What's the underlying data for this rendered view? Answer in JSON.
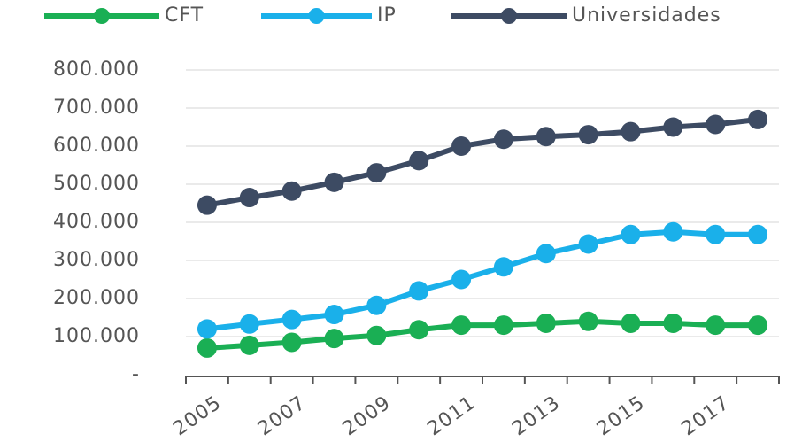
{
  "chart_data": {
    "type": "line",
    "categories": [
      "2005",
      null,
      "2007",
      null,
      "2009",
      null,
      "2011",
      null,
      "2013",
      null,
      "2015",
      null,
      "2017",
      null
    ],
    "series": [
      {
        "name": "CFT",
        "color": "#1aaf54",
        "values": [
          70000,
          77000,
          85000,
          95000,
          103000,
          118000,
          130000,
          130000,
          135000,
          140000,
          135000,
          135000,
          130000,
          130000
        ]
      },
      {
        "name": "IP",
        "color": "#1ab0ea",
        "values": [
          120000,
          133000,
          145000,
          158000,
          182000,
          220000,
          250000,
          283000,
          318000,
          343000,
          368000,
          375000,
          368000,
          368000
        ]
      },
      {
        "name": "Universidades",
        "color": "#3d4b63",
        "values": [
          445000,
          465000,
          482000,
          505000,
          530000,
          562000,
          600000,
          618000,
          625000,
          630000,
          638000,
          650000,
          657000,
          670000
        ]
      }
    ],
    "ylim": [
      0,
      800000
    ],
    "yticks": [
      {
        "value": 0,
        "label": "-"
      },
      {
        "value": 100000,
        "label": "100.000"
      },
      {
        "value": 200000,
        "label": "200.000"
      },
      {
        "value": 300000,
        "label": "300.000"
      },
      {
        "value": 400000,
        "label": "400.000"
      },
      {
        "value": 500000,
        "label": "500.000"
      },
      {
        "value": 600000,
        "label": "600.000"
      },
      {
        "value": 700000,
        "label": "700.000"
      },
      {
        "value": 800000,
        "label": "800.000"
      }
    ],
    "grid": true,
    "legend": "top"
  }
}
